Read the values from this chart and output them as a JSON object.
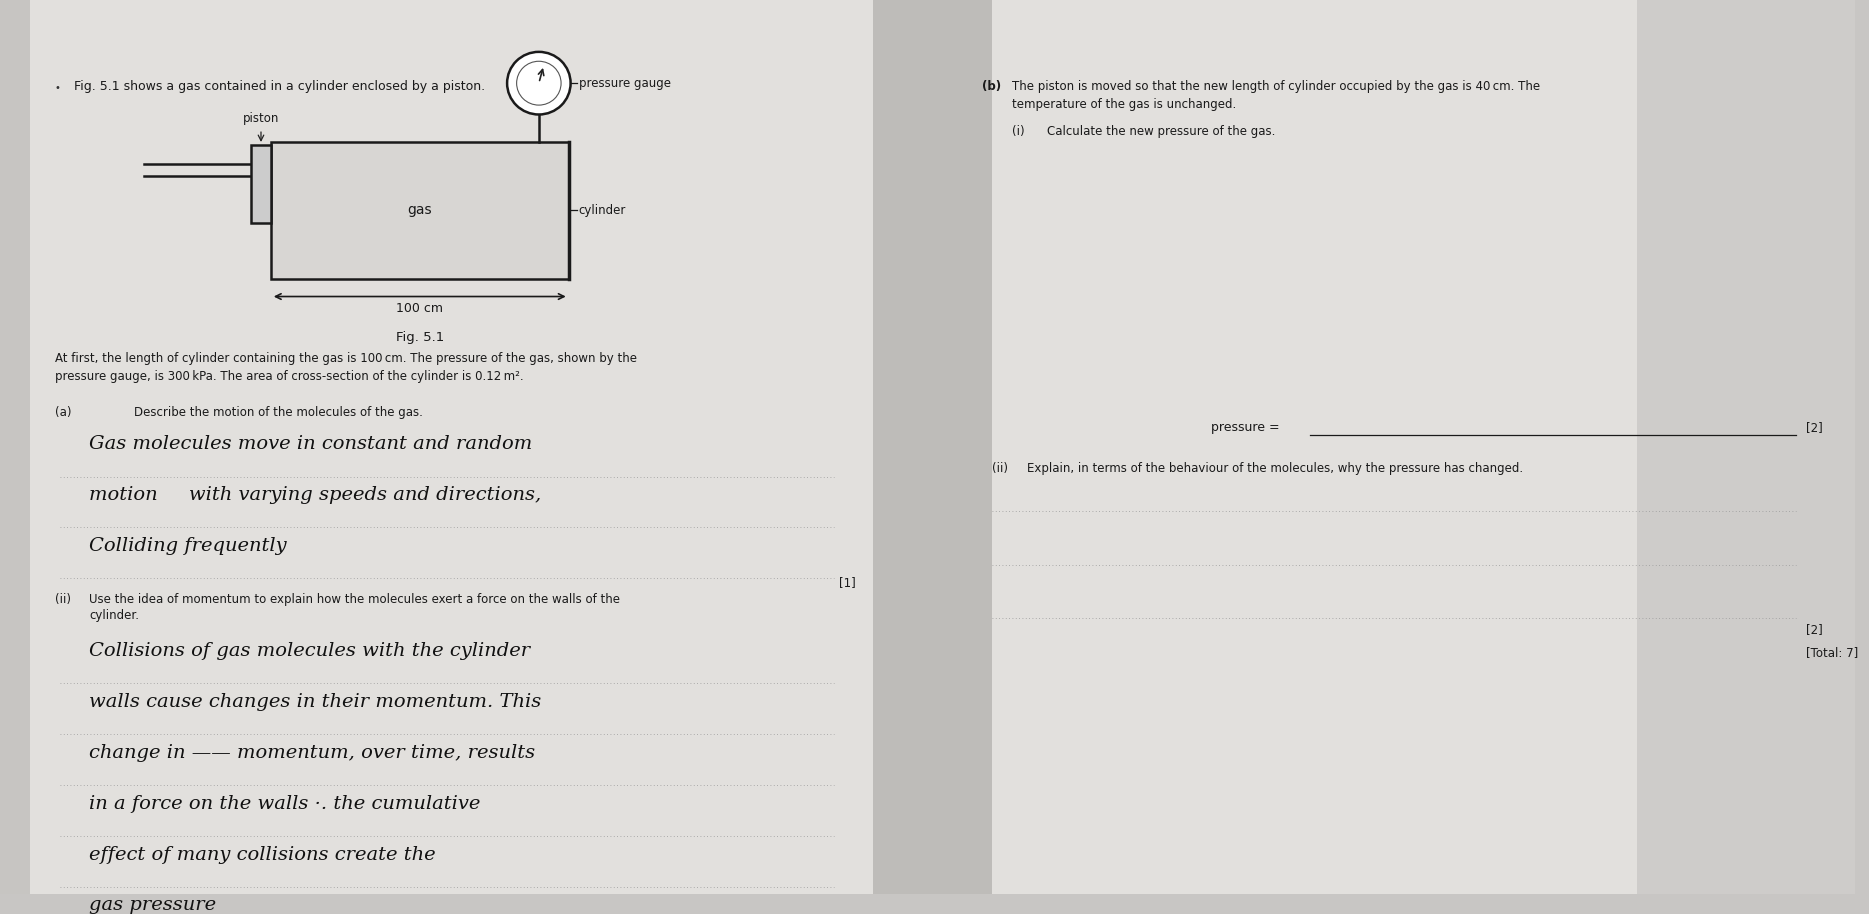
{
  "bg_color": "#c8c6c4",
  "paper_color": "#e2e0dd",
  "shadow_color": "#b0aeac",
  "title_text": "Fig. 5.1 shows a gas contained in a cylinder enclosed by a piston.",
  "fig_label": "Fig. 5.1",
  "piston_label": "piston",
  "pressure_gauge_label": "pressure gauge",
  "gas_label": "gas",
  "cylinder_label": "cylinder",
  "length_label": "100 cm",
  "at_first_text": "At first, the length of cylinder containing the gas is 100 cm. The pressure of the gas, shown by the\npressure gauge, is 300 kPa. The area of cross-section of the cylinder is 0.12 m².",
  "a_label": "(a)",
  "a_question": "Describe the motion of the molecules of the gas.",
  "a_answer_line1": "Gas molecules move in constant and random",
  "a_answer_line2": "motion     with varying speeds and directions,",
  "a_answer_line3": "Colliding frequently",
  "a_mark": "[1]",
  "aii_label": "(ii)",
  "aii_question_line1": "Use the idea of momentum to explain how the molecules exert a force on the walls of the",
  "aii_question_line2": "cylinder.",
  "aii_answer_line1": "Collisions of gas molecules with the cylinder",
  "aii_answer_line2": "walls cause changes in their momentum. This",
  "aii_answer_line3": "change in —— momentum, over time, results",
  "aii_answer_line4": "in a force on the walls ·. the cumulative",
  "aii_answer_line5": "effect of many collisions create the",
  "aii_answer_line6": "gas pressure",
  "b_label": "(b)",
  "b_question_line1": "The piston is moved so that the new length of cylinder occupied by the gas is 40 cm. The",
  "b_question_line2": "temperature of the gas is unchanged.",
  "bi_label": "(i)",
  "bi_question": "Calculate the new pressure of the gas.",
  "bi_mark": "[2]",
  "bii_label": "(ii)",
  "bii_question": "Explain, in terms of the behaviour of the molecules, why the pressure has changed.",
  "bii_mark": "[2]",
  "total_mark": "[Total: 7]",
  "dot": "•"
}
